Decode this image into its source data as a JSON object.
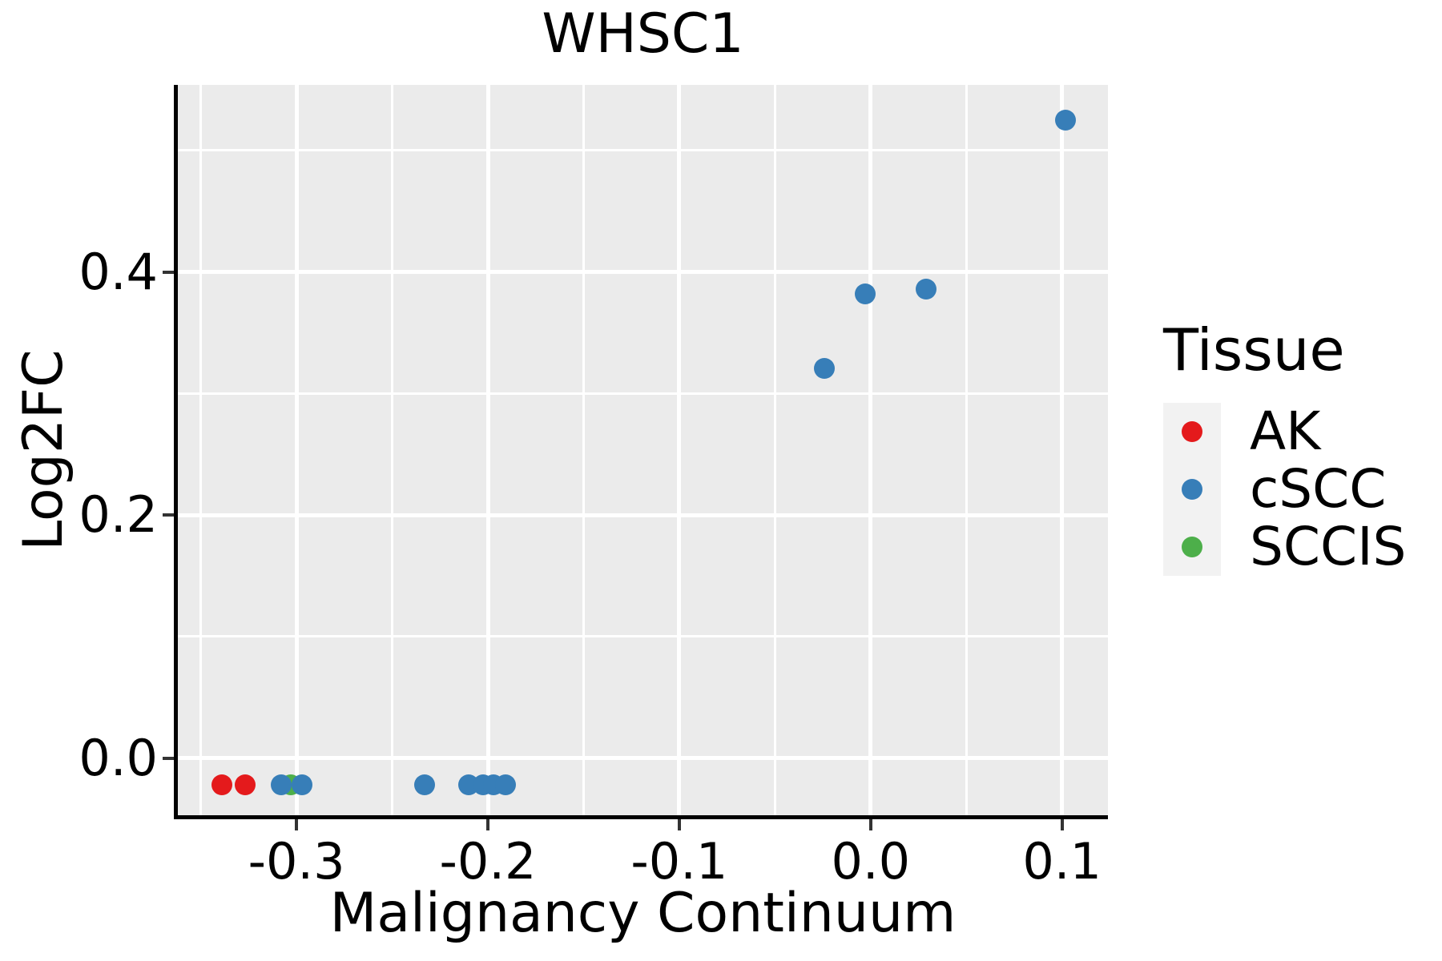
{
  "chart_data": {
    "type": "scatter",
    "title": "WHSC1",
    "xlabel": "Malignancy Continuum",
    "ylabel": "Log2FC",
    "xlim": [
      -0.362,
      0.124
    ],
    "ylim": [
      -0.047,
      0.554
    ],
    "grid": "on",
    "legend_position": "right",
    "x_major_ticks": [
      -0.3,
      -0.2,
      -0.1,
      0.0,
      0.1
    ],
    "x_tick_labels": [
      "-0.3",
      "-0.2",
      "-0.1",
      "0.0",
      "0.1"
    ],
    "x_minor_ticks": [
      -0.35,
      -0.25,
      -0.15,
      -0.05,
      0.05
    ],
    "y_major_ticks": [
      0.0,
      0.2,
      0.4
    ],
    "y_tick_labels": [
      "0.0",
      "0.2",
      "0.4"
    ],
    "y_minor_ticks": [
      0.1,
      0.3,
      0.5
    ],
    "series": [
      {
        "name": "AK",
        "color": "#E41A1C",
        "points": [
          [
            -0.339,
            -0.022
          ],
          [
            -0.327,
            -0.022
          ]
        ]
      },
      {
        "name": "SCCIS",
        "color": "#4DAF4A",
        "points": [
          [
            -0.303,
            -0.022
          ]
        ]
      },
      {
        "name": "cSCC",
        "color": "#377EB8",
        "points": [
          [
            -0.308,
            -0.022
          ],
          [
            -0.297,
            -0.022
          ],
          [
            -0.233,
            -0.022
          ],
          [
            -0.21,
            -0.022
          ],
          [
            -0.2025,
            -0.022
          ],
          [
            -0.197,
            -0.022
          ],
          [
            -0.191,
            -0.022
          ],
          [
            -0.024,
            0.321
          ],
          [
            -0.003,
            0.382
          ],
          [
            0.029,
            0.386
          ],
          [
            0.102,
            0.525
          ]
        ]
      }
    ]
  },
  "legend": {
    "title": "Tissue",
    "items": [
      {
        "label": "AK",
        "color": "#E41A1C"
      },
      {
        "label": "cSCC",
        "color": "#377EB8"
      },
      {
        "label": "SCCIS",
        "color": "#4DAF4A"
      }
    ]
  },
  "colors": {
    "panel_bg": "#EBEBEB",
    "grid": "#FFFFFF",
    "axis_line": "#000000",
    "tick": "#333333",
    "legend_key_bg": "#F2F2F2",
    "text": "#000000"
  }
}
